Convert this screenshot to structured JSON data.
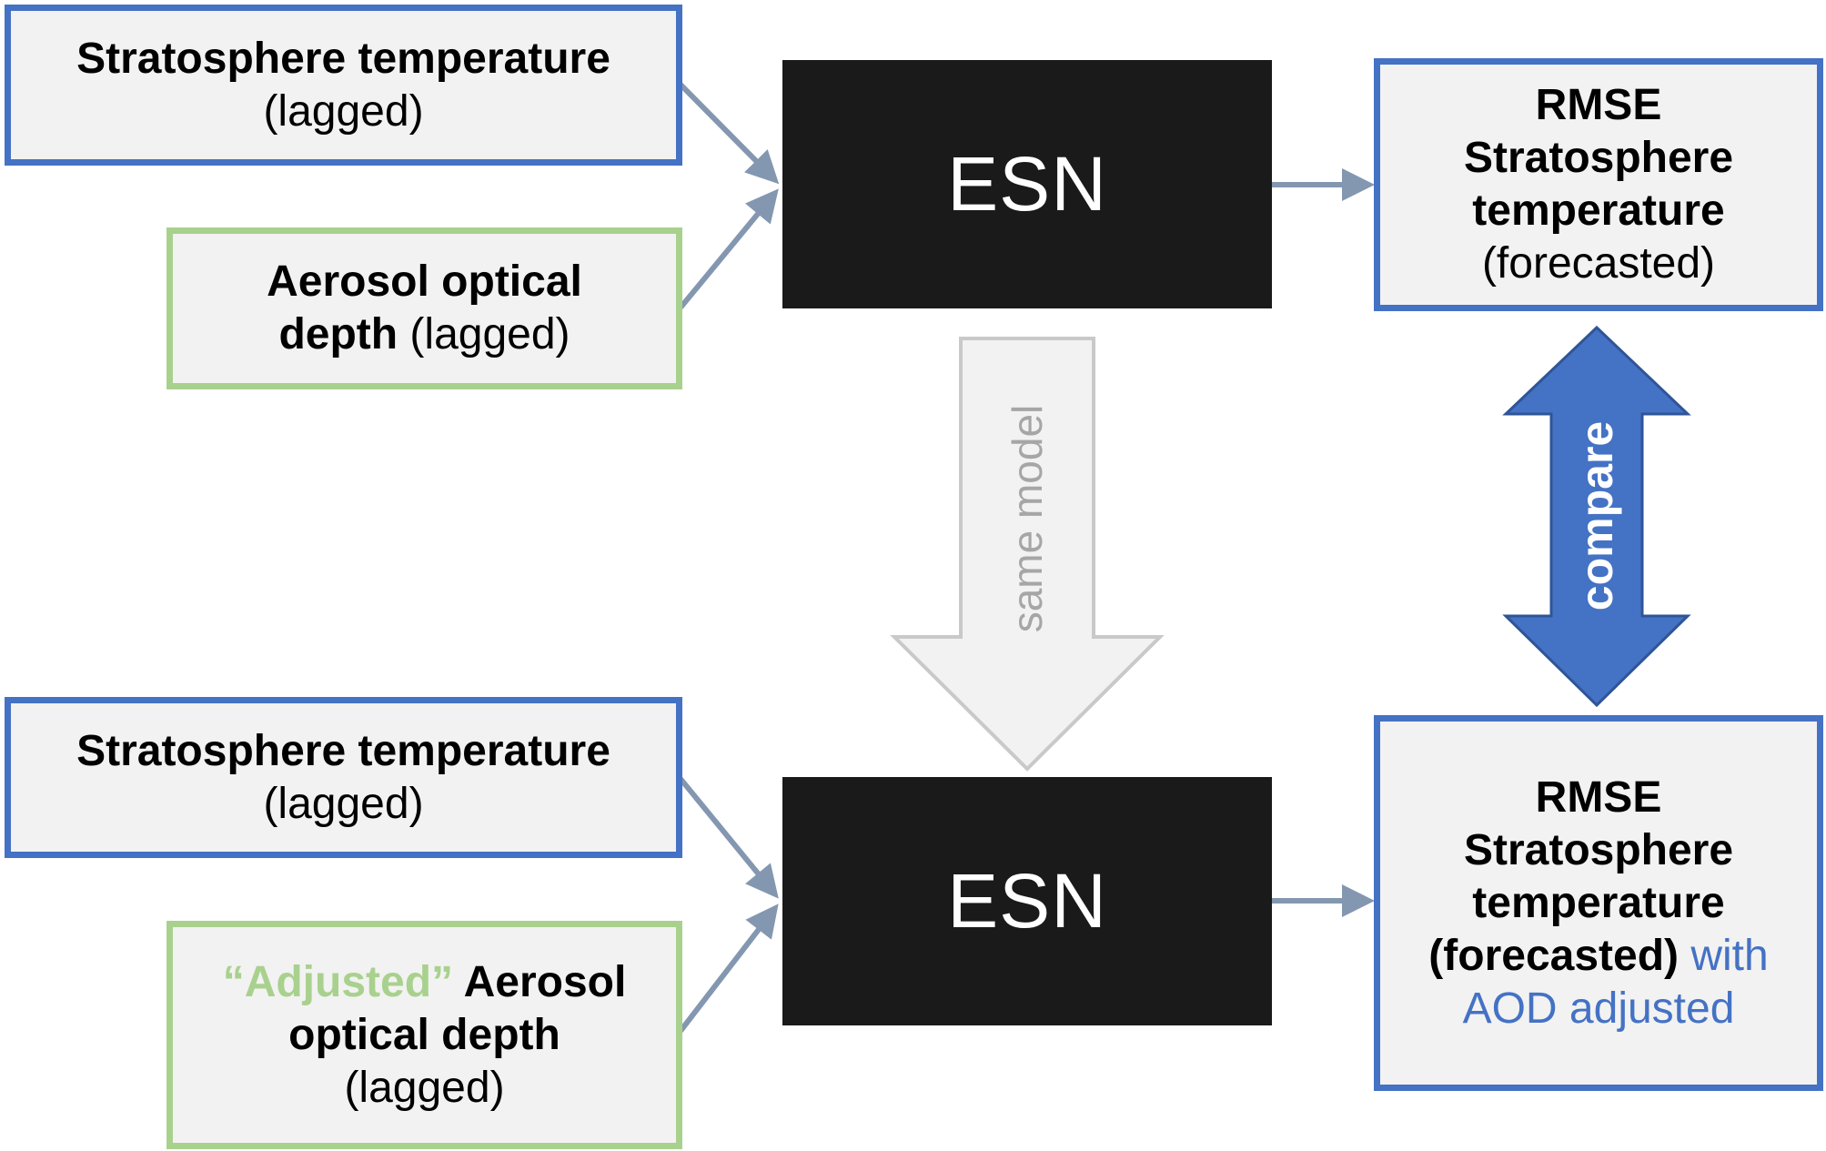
{
  "input_top": {
    "temp_title": "Stratosphere temperature",
    "temp_sub": "(lagged)",
    "aod_line1": "Aerosol optical",
    "aod_line2_bold": "depth",
    "aod_line2_normal": " (lagged)"
  },
  "input_bottom": {
    "temp_title": "Stratosphere temperature",
    "temp_sub": "(lagged)",
    "aod_adjusted": "“Adjusted”",
    "aod_line1_rest": " Aerosol",
    "aod_line2": "optical depth",
    "aod_line3": "(lagged)"
  },
  "model": {
    "top_label": "ESN",
    "bottom_label": "ESN",
    "same_model_label": "same model"
  },
  "output_top": {
    "line1": "RMSE",
    "line2": "Stratosphere",
    "line3": "temperature",
    "line4": "(forecasted)"
  },
  "output_bottom": {
    "line1": "RMSE",
    "line2": "Stratosphere",
    "line3": "temperature",
    "line4_bold": "(forecasted)",
    "line4_blue": " with",
    "line5_blue": "AOD adjusted"
  },
  "compare_label": "compare",
  "colors": {
    "blue_border": "#4472c4",
    "green_border": "#a9d18e",
    "box_fill": "#f2f2f2",
    "esn_fill": "#1a1a1a",
    "connector": "#8497b0",
    "same_model_arrow_fill": "#f2f2f2",
    "same_model_arrow_stroke": "#c9c9c9",
    "compare_arrow_fill": "#4472c4"
  }
}
